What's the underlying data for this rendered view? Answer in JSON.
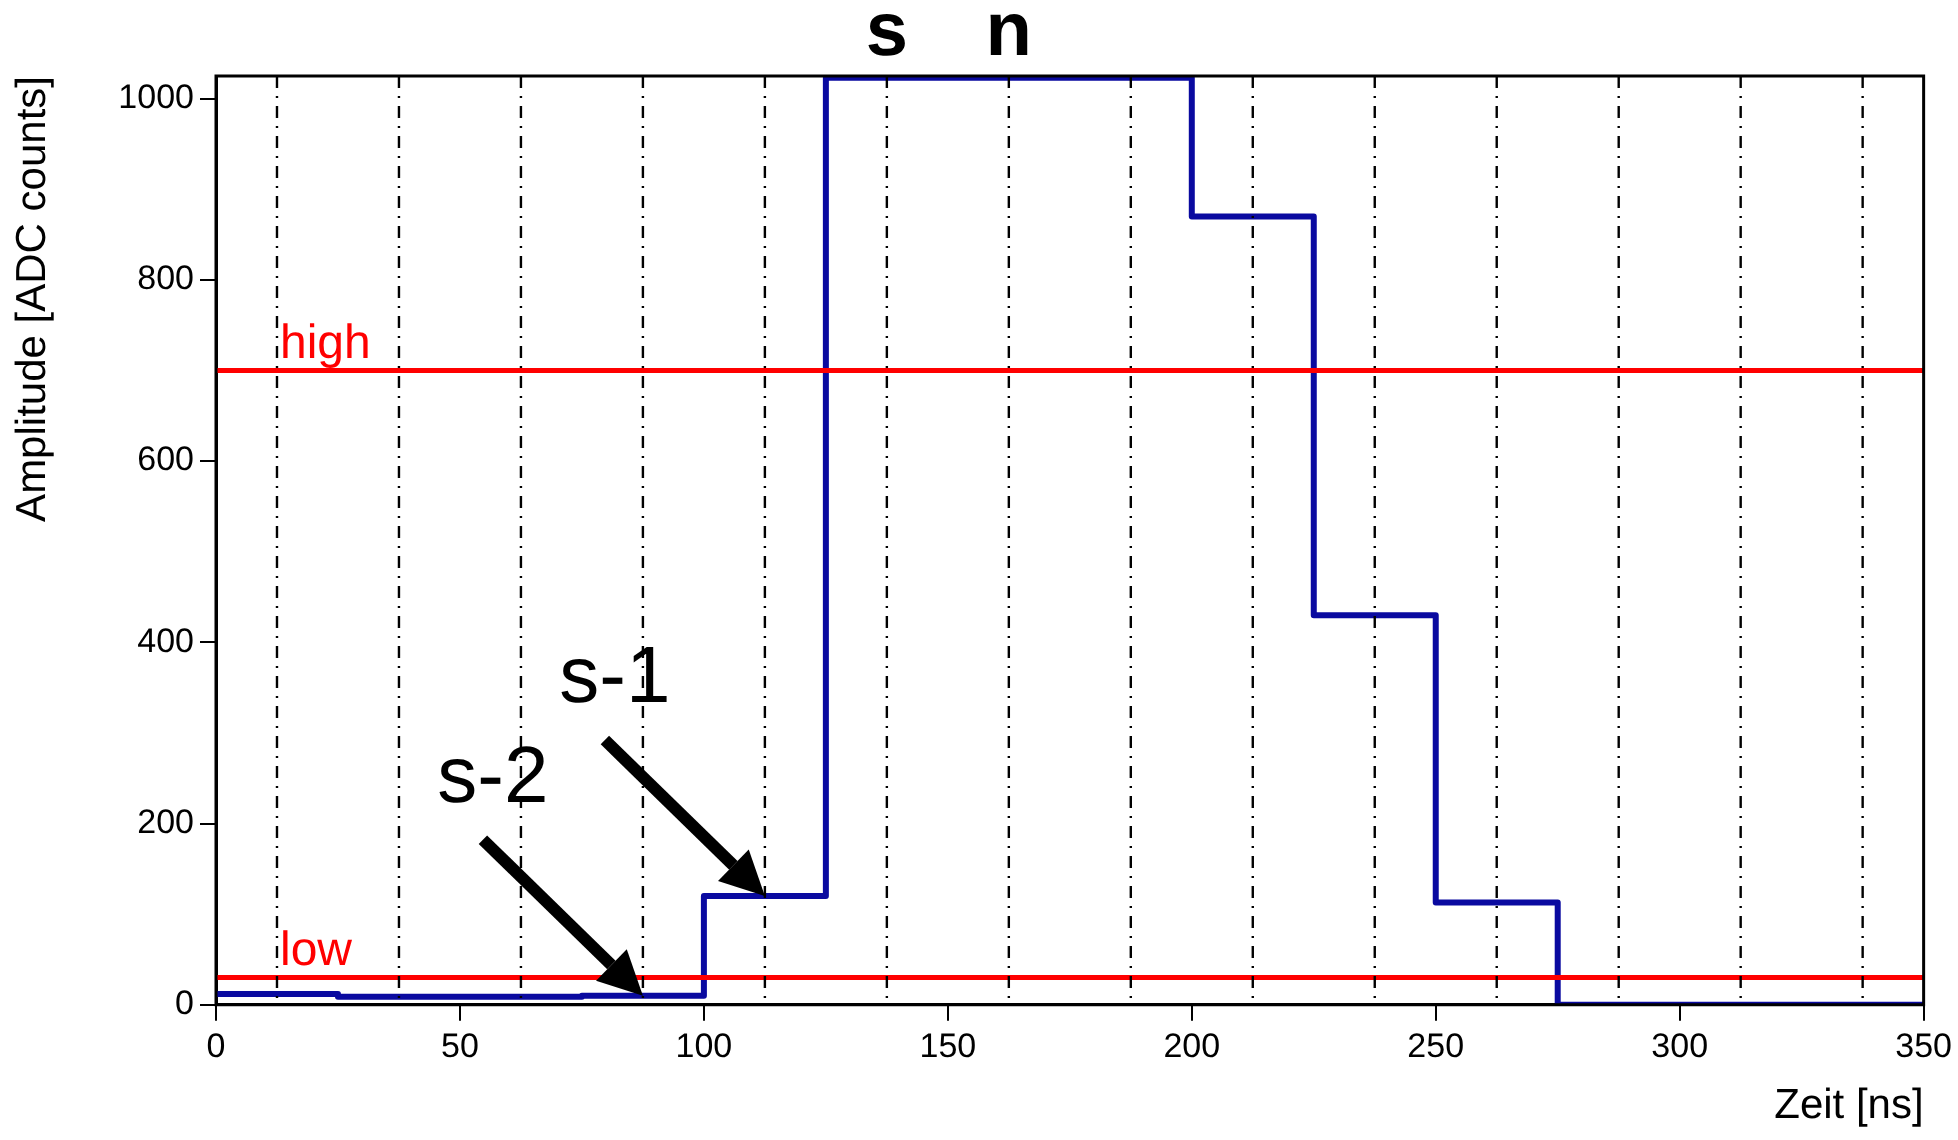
{
  "chart_data": {
    "type": "histogram",
    "xlabel": "Zeit [ns]",
    "ylabel": "Amplitude [ADC counts]",
    "bins": [
      0,
      25,
      50,
      75,
      100,
      125,
      150,
      175,
      200,
      225,
      250,
      275,
      300,
      325,
      350
    ],
    "values": [
      12,
      9,
      9,
      10,
      120,
      1023,
      1023,
      1023,
      870,
      430,
      113,
      0,
      0,
      0
    ],
    "color": "#0a0aa0",
    "xlim": [
      0,
      350
    ],
    "xticks": [
      0,
      50,
      100,
      150,
      200,
      250,
      300,
      350
    ],
    "ylim": [
      0,
      1025
    ],
    "yticks": [
      0,
      200,
      400,
      600,
      800,
      1000
    ],
    "grid": false,
    "legend": false,
    "ref_lines": [
      {
        "axis": "y",
        "value": 700,
        "label": "high",
        "color": "#ff0000"
      },
      {
        "axis": "y",
        "value": 30,
        "label": "low",
        "color": "#ff0000"
      },
      {
        "axis": "x",
        "value": 12.5,
        "color": "#000000",
        "line_style": "dashed"
      },
      {
        "axis": "x",
        "value": 37.5,
        "color": "#000000",
        "line_style": "dashed"
      },
      {
        "axis": "x",
        "value": 62.5,
        "color": "#000000",
        "line_style": "dashed"
      },
      {
        "axis": "x",
        "value": 87.5,
        "color": "#000000",
        "line_style": "dashed"
      },
      {
        "axis": "x",
        "value": 112.5,
        "color": "#000000",
        "line_style": "dashed"
      },
      {
        "axis": "x",
        "value": 137.5,
        "color": "#000000",
        "line_style": "dashed"
      },
      {
        "axis": "x",
        "value": 162.5,
        "color": "#000000",
        "line_style": "dashed"
      },
      {
        "axis": "x",
        "value": 187.5,
        "color": "#000000",
        "line_style": "dashed"
      },
      {
        "axis": "x",
        "value": 212.5,
        "color": "#000000",
        "line_style": "dashed"
      },
      {
        "axis": "x",
        "value": 237.5,
        "color": "#000000",
        "line_style": "dashed"
      },
      {
        "axis": "x",
        "value": 262.5,
        "color": "#000000",
        "line_style": "dashed"
      },
      {
        "axis": "x",
        "value": 287.5,
        "color": "#000000",
        "line_style": "dashed"
      },
      {
        "axis": "x",
        "value": 312.5,
        "color": "#000000",
        "line_style": "dashed"
      },
      {
        "axis": "x",
        "value": 337.5,
        "color": "#000000",
        "line_style": "dashed"
      }
    ],
    "annotations": [
      {
        "text": "s",
        "x": 137.5,
        "y": 1023
      },
      {
        "text": "n",
        "x": 162.5,
        "y": 1023
      },
      {
        "text": "s-1",
        "x": 112.5,
        "y": 120
      },
      {
        "text": "s-2",
        "x": 87.5,
        "y": 10
      }
    ]
  }
}
